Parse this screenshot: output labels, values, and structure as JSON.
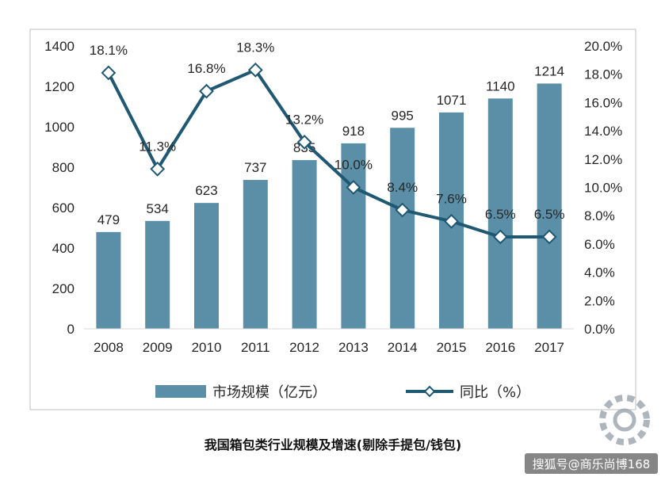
{
  "chart_data": {
    "type": "bar",
    "categories": [
      "2008",
      "2009",
      "2010",
      "2011",
      "2012",
      "2013",
      "2014",
      "2015",
      "2016",
      "2017"
    ],
    "series": [
      {
        "name": "市场规模（亿元）",
        "type": "bar",
        "axis": "left",
        "values": [
          479,
          534,
          623,
          737,
          835,
          918,
          995,
          1071,
          1140,
          1214
        ],
        "labels": [
          "479",
          "534",
          "623",
          "737",
          "835",
          "918",
          "995",
          "1071",
          "1140",
          "1214"
        ]
      },
      {
        "name": "同比（%）",
        "type": "line",
        "axis": "right",
        "values": [
          18.1,
          11.3,
          16.8,
          18.3,
          13.2,
          10.0,
          8.4,
          7.6,
          6.5,
          6.5
        ],
        "labels": [
          "18.1%",
          "11.3%",
          "16.8%",
          "18.3%",
          "13.2%",
          "10.0%",
          "8.4%",
          "7.6%",
          "6.5%",
          "6.5%"
        ]
      }
    ],
    "ylim": [
      0,
      1400
    ],
    "yticks": [
      "0",
      "200",
      "400",
      "600",
      "800",
      "1000",
      "1200",
      "1400"
    ],
    "y2lim": [
      0,
      20
    ],
    "y2ticks": [
      "0.0%",
      "2.0%",
      "4.0%",
      "6.0%",
      "8.0%",
      "10.0%",
      "12.0%",
      "14.0%",
      "16.0%",
      "18.0%",
      "20.0%"
    ],
    "legend_position": "bottom",
    "grid": false,
    "caption": "我国箱包类行业规模及增速(剔除手提包/钱包)",
    "colors": {
      "bar": "#5b8fa8",
      "line": "#1e5873",
      "marker_fill": "#ffffff"
    }
  },
  "watermark": {
    "text": "搜狐号@商乐尚博168"
  }
}
